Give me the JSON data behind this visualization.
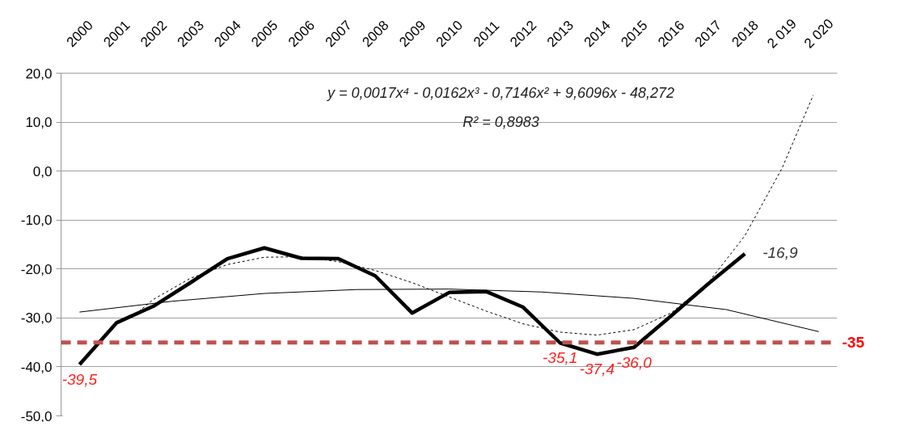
{
  "chart_data": {
    "type": "line",
    "xlim": [
      1999.5,
      2020.5
    ],
    "xticks": [
      2000,
      2001,
      2002,
      2003,
      2004,
      2005,
      2006,
      2007,
      2008,
      2009,
      2010,
      2011,
      2012,
      2013,
      2014,
      2015,
      2016,
      2017,
      2018,
      {
        "value": 2019,
        "label": "2 019"
      },
      {
        "value": 2020,
        "label": "2 020"
      }
    ],
    "ylim": [
      -50,
      20
    ],
    "yticks": [
      {
        "value": 20,
        "label": "20,0"
      },
      {
        "value": 10,
        "label": "10,0"
      },
      {
        "value": 0,
        "label": "0,0"
      },
      {
        "value": -10,
        "label": "-10,0"
      },
      {
        "value": -20,
        "label": "-20,0"
      },
      {
        "value": -30,
        "label": "-30,0"
      },
      {
        "value": -40,
        "label": "-40,0"
      },
      {
        "value": -50,
        "label": "-50,0"
      }
    ],
    "grid": "y",
    "marker": "none",
    "series": [
      {
        "color": "#000000",
        "line_style": "solid",
        "x": [
          2000,
          2001,
          2002,
          2003,
          2004,
          2005,
          2006,
          2007,
          2008,
          2009,
          2010,
          2011,
          2012,
          2013,
          2014,
          2015,
          2016,
          2017,
          2018
        ],
        "values": [
          -39.5,
          -31.0,
          -27.6,
          -22.8,
          -17.9,
          -15.7,
          -17.8,
          -17.9,
          -21.4,
          -29.0,
          -24.8,
          -24.6,
          -27.8,
          -35.1,
          -37.4,
          -36.0,
          -29.6,
          -23.1,
          -16.9
        ],
        "value_labels": [
          "-39,5",
          null,
          null,
          null,
          null,
          null,
          null,
          null,
          null,
          null,
          null,
          null,
          null,
          "-35,1",
          "-37,4",
          "-36,0",
          null,
          null,
          "-16,9"
        ]
      },
      {
        "type": "line",
        "color": "#000000",
        "line_style": "dashed",
        "x": [
          2001.6,
          2002,
          2003,
          2004,
          2005,
          2006,
          2007,
          2008,
          2009,
          2010,
          2011,
          2012,
          2013,
          2014,
          2015,
          2016,
          2017,
          2018,
          2019,
          2019.85
        ],
        "values": [
          -28.7,
          -26.2,
          -21.9,
          -19.1,
          -17.6,
          -17.5,
          -18.5,
          -20.3,
          -22.8,
          -25.7,
          -28.6,
          -31.2,
          -32.9,
          -33.5,
          -32.4,
          -29.0,
          -22.9,
          -13.2,
          0.5,
          15.5
        ]
      },
      {
        "type": "line",
        "color": "#000000",
        "line_style": "solid",
        "x": [
          2000,
          2002.5,
          2005,
          2007.5,
          2010,
          2012.5,
          2015,
          2017.5,
          2020
        ],
        "values": [
          -28.8,
          -26.6,
          -25.0,
          -24.2,
          -24.1,
          -24.7,
          -26.0,
          -28.3,
          -32.8
        ]
      }
    ],
    "ref_lines": [
      {
        "axis": "y",
        "value": -35,
        "label": "-35",
        "color": "#c0504d",
        "line_style": "dashed"
      }
    ],
    "annotations": [
      "y = 0,0017x⁴ - 0,0162x³ - 0,7146x² + 9,6096x - 48,272",
      "R² = 0,8983"
    ]
  }
}
